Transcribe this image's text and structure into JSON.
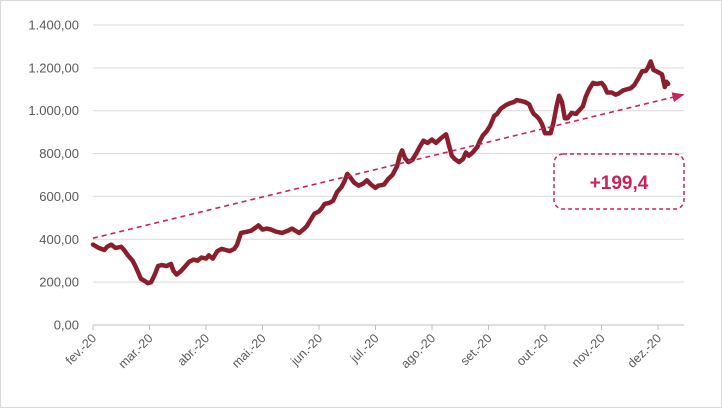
{
  "chart_data": {
    "type": "line",
    "title": "",
    "xlabel": "",
    "ylabel": "",
    "ylim": [
      0,
      1400
    ],
    "yticks": [
      0,
      200,
      400,
      600,
      800,
      1000,
      1200,
      1400
    ],
    "ytick_labels": [
      "0,00",
      "200,00",
      "400,00",
      "600,00",
      "800,00",
      "1.000,00",
      "1.200,00",
      "1.400,00"
    ],
    "xlim": [
      0,
      10.45
    ],
    "x_tick_labels": [
      "fev.-20",
      "mar.-20",
      "abr.-20",
      "mai.-20",
      "jun.-20",
      "jul.-20",
      "ago.-20",
      "set.-20",
      "out.-20",
      "nov.-20",
      "dez.-20"
    ],
    "grid": true,
    "series": [
      {
        "color": "#8b1e2d",
        "points": [
          [
            0.0,
            375
          ],
          [
            0.1,
            360
          ],
          [
            0.2,
            350
          ],
          [
            0.25,
            365
          ],
          [
            0.32,
            375
          ],
          [
            0.4,
            360
          ],
          [
            0.5,
            365
          ],
          [
            0.55,
            350
          ],
          [
            0.62,
            325
          ],
          [
            0.7,
            300
          ],
          [
            0.75,
            275
          ],
          [
            0.8,
            245
          ],
          [
            0.85,
            215
          ],
          [
            0.92,
            205
          ],
          [
            0.97,
            195
          ],
          [
            1.03,
            200
          ],
          [
            1.1,
            240
          ],
          [
            1.15,
            275
          ],
          [
            1.22,
            280
          ],
          [
            1.3,
            275
          ],
          [
            1.38,
            285
          ],
          [
            1.42,
            255
          ],
          [
            1.48,
            235
          ],
          [
            1.55,
            250
          ],
          [
            1.62,
            270
          ],
          [
            1.7,
            295
          ],
          [
            1.78,
            305
          ],
          [
            1.85,
            300
          ],
          [
            1.92,
            315
          ],
          [
            2.0,
            310
          ],
          [
            2.05,
            325
          ],
          [
            2.12,
            310
          ],
          [
            2.2,
            345
          ],
          [
            2.28,
            355
          ],
          [
            2.35,
            350
          ],
          [
            2.42,
            345
          ],
          [
            2.5,
            355
          ],
          [
            2.55,
            375
          ],
          [
            2.62,
            430
          ],
          [
            2.72,
            435
          ],
          [
            2.8,
            440
          ],
          [
            2.88,
            455
          ],
          [
            2.93,
            465
          ],
          [
            3.0,
            445
          ],
          [
            3.08,
            450
          ],
          [
            3.15,
            445
          ],
          [
            3.25,
            435
          ],
          [
            3.35,
            430
          ],
          [
            3.45,
            440
          ],
          [
            3.52,
            450
          ],
          [
            3.58,
            440
          ],
          [
            3.65,
            430
          ],
          [
            3.72,
            445
          ],
          [
            3.78,
            460
          ],
          [
            3.85,
            490
          ],
          [
            3.92,
            520
          ],
          [
            4.0,
            530
          ],
          [
            4.05,
            545
          ],
          [
            4.1,
            565
          ],
          [
            4.18,
            570
          ],
          [
            4.25,
            580
          ],
          [
            4.32,
            620
          ],
          [
            4.4,
            645
          ],
          [
            4.45,
            670
          ],
          [
            4.5,
            705
          ],
          [
            4.55,
            690
          ],
          [
            4.62,
            665
          ],
          [
            4.7,
            650
          ],
          [
            4.78,
            660
          ],
          [
            4.85,
            675
          ],
          [
            4.92,
            655
          ],
          [
            5.0,
            640
          ],
          [
            5.05,
            650
          ],
          [
            5.15,
            655
          ],
          [
            5.22,
            680
          ],
          [
            5.3,
            700
          ],
          [
            5.38,
            740
          ],
          [
            5.43,
            790
          ],
          [
            5.47,
            815
          ],
          [
            5.52,
            780
          ],
          [
            5.58,
            760
          ],
          [
            5.65,
            770
          ],
          [
            5.72,
            800
          ],
          [
            5.78,
            830
          ],
          [
            5.85,
            860
          ],
          [
            5.92,
            850
          ],
          [
            6.0,
            865
          ],
          [
            6.07,
            850
          ],
          [
            6.15,
            870
          ],
          [
            6.2,
            880
          ],
          [
            6.25,
            890
          ],
          [
            6.3,
            840
          ],
          [
            6.35,
            790
          ],
          [
            6.4,
            775
          ],
          [
            6.48,
            760
          ],
          [
            6.55,
            775
          ],
          [
            6.6,
            805
          ],
          [
            6.65,
            790
          ],
          [
            6.72,
            805
          ],
          [
            6.8,
            830
          ],
          [
            6.85,
            860
          ],
          [
            6.9,
            885
          ],
          [
            6.97,
            905
          ],
          [
            7.03,
            930
          ],
          [
            7.1,
            975
          ],
          [
            7.15,
            985
          ],
          [
            7.22,
            1010
          ],
          [
            7.3,
            1025
          ],
          [
            7.38,
            1035
          ],
          [
            7.45,
            1040
          ],
          [
            7.5,
            1050
          ],
          [
            7.58,
            1045
          ],
          [
            7.65,
            1040
          ],
          [
            7.72,
            1030
          ],
          [
            7.75,
            1010
          ],
          [
            7.8,
            985
          ],
          [
            7.85,
            975
          ],
          [
            7.9,
            960
          ],
          [
            7.95,
            935
          ],
          [
            8.0,
            895
          ],
          [
            8.1,
            895
          ],
          [
            8.15,
            945
          ],
          [
            8.2,
            1015
          ],
          [
            8.25,
            1070
          ],
          [
            8.3,
            1040
          ],
          [
            8.35,
            965
          ],
          [
            8.4,
            965
          ],
          [
            8.47,
            990
          ],
          [
            8.55,
            985
          ],
          [
            8.6,
            1000
          ],
          [
            8.67,
            1020
          ],
          [
            8.72,
            1065
          ],
          [
            8.78,
            1100
          ],
          [
            8.85,
            1130
          ],
          [
            8.92,
            1125
          ],
          [
            9.0,
            1130
          ],
          [
            9.05,
            1115
          ],
          [
            9.1,
            1085
          ],
          [
            9.18,
            1085
          ],
          [
            9.25,
            1075
          ],
          [
            9.3,
            1080
          ],
          [
            9.38,
            1095
          ],
          [
            9.45,
            1100
          ],
          [
            9.52,
            1105
          ],
          [
            9.58,
            1120
          ],
          [
            9.65,
            1150
          ],
          [
            9.72,
            1185
          ],
          [
            9.78,
            1185
          ],
          [
            9.82,
            1200
          ],
          [
            9.87,
            1230
          ],
          [
            9.92,
            1190
          ],
          [
            10.0,
            1180
          ],
          [
            10.07,
            1170
          ],
          [
            10.12,
            1110
          ],
          [
            10.15,
            1135
          ],
          [
            10.18,
            1125
          ]
        ]
      }
    ],
    "trendline": {
      "color": "#c9245a",
      "style": "dashed",
      "arrow": true,
      "start": [
        0.0,
        405
      ],
      "end": [
        10.45,
        1075
      ]
    },
    "annotation": {
      "text": "+199,4",
      "color": "#c9245a"
    }
  }
}
